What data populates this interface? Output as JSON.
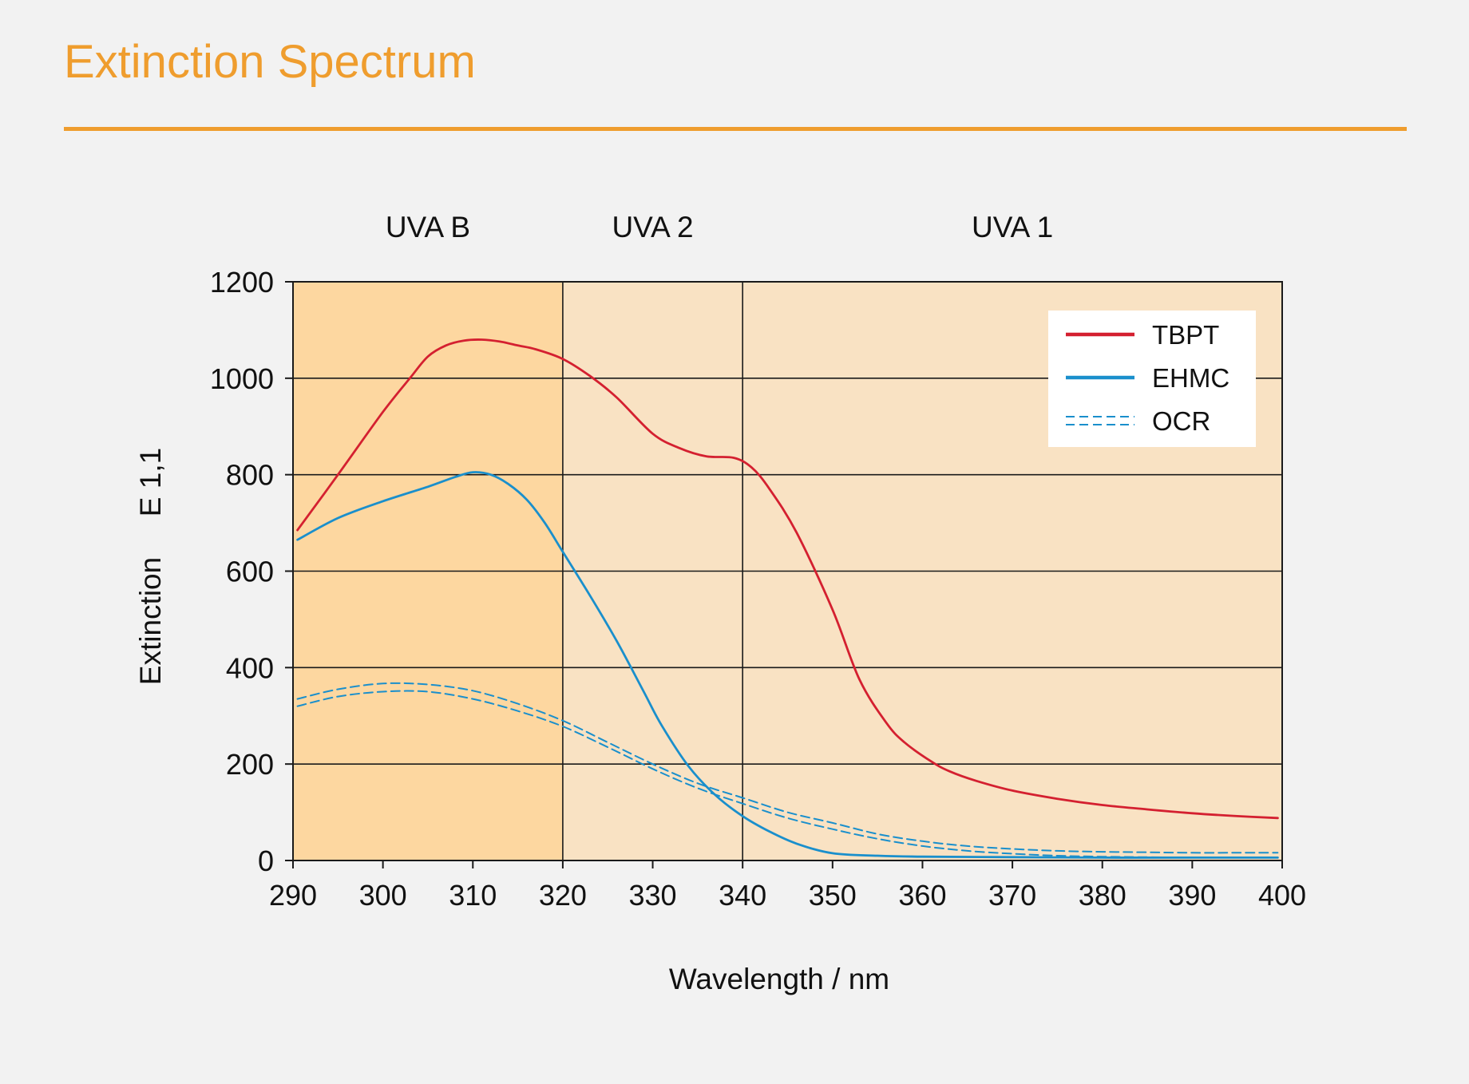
{
  "title": "Extinction Spectrum",
  "colors": {
    "title": "#ef9d2e",
    "background": "#f2f2f2",
    "uvb_region": "#fdd7a0",
    "uva_region": "#f9e2c3",
    "tbpt": "#d42030",
    "ehmc": "#1a8fcc",
    "ocr": "#1a8fcc"
  },
  "chart_data": {
    "type": "line",
    "xlabel": "Wavelength / nm",
    "ylabel_left": "Extinction",
    "ylabel_right": "E 1,1",
    "xlim": [
      290,
      400
    ],
    "ylim": [
      0,
      1200
    ],
    "xticks": [
      290,
      300,
      310,
      320,
      330,
      340,
      350,
      360,
      370,
      380,
      390,
      400
    ],
    "yticks": [
      0,
      200,
      400,
      600,
      800,
      1000,
      1200
    ],
    "grid": "horizontal",
    "legend_position": "top-right",
    "regions": [
      {
        "label": "UVA B",
        "from": 290,
        "to": 320
      },
      {
        "label": "UVA 2",
        "from": 320,
        "to": 340
      },
      {
        "label": "UVA 1",
        "from": 340,
        "to": 400
      }
    ],
    "series": [
      {
        "name": "TBPT",
        "style": "solid",
        "x": [
          290.5,
          295,
          300,
          303,
          305,
          307,
          309,
          311,
          313,
          315,
          317,
          320,
          323,
          326,
          330,
          333,
          336,
          339,
          341,
          343,
          346,
          350,
          353,
          356,
          358,
          361,
          363,
          366,
          370,
          375,
          380,
          385,
          390,
          395,
          399.5
        ],
        "y": [
          685,
          800,
          930,
          1000,
          1045,
          1068,
          1078,
          1080,
          1076,
          1068,
          1060,
          1040,
          1005,
          960,
          885,
          855,
          838,
          835,
          815,
          770,
          680,
          520,
          375,
          285,
          245,
          205,
          185,
          165,
          145,
          128,
          115,
          106,
          98,
          92,
          88
        ]
      },
      {
        "name": "EHMC",
        "style": "solid",
        "x": [
          290.5,
          295,
          300,
          305,
          308,
          310,
          312,
          314,
          316,
          318,
          320,
          323,
          326,
          329,
          331,
          334,
          337,
          340,
          343,
          346,
          350,
          355,
          360,
          370,
          380,
          390,
          399.5
        ],
        "y": [
          665,
          710,
          745,
          775,
          795,
          805,
          800,
          780,
          748,
          700,
          640,
          550,
          455,
          350,
          280,
          195,
          135,
          92,
          60,
          35,
          15,
          10,
          8,
          7,
          6,
          6,
          6
        ]
      },
      {
        "name": "OCR",
        "style": "dashed",
        "x": [
          290.5,
          295,
          300,
          305,
          310,
          315,
          320,
          325,
          330,
          335,
          340,
          345,
          350,
          355,
          360,
          365,
          370,
          375,
          380,
          385,
          390,
          395,
          399.5
        ],
        "y": [
          335,
          355,
          367,
          365,
          352,
          325,
          290,
          245,
          200,
          160,
          130,
          100,
          78,
          55,
          40,
          30,
          24,
          20,
          18,
          17,
          16,
          16,
          16
        ]
      },
      {
        "name": "OCR (lower)",
        "style": "dashed",
        "x": [
          290.5,
          295,
          300,
          305,
          310,
          315,
          320,
          325,
          330,
          335,
          340,
          345,
          350,
          355,
          360,
          365,
          370,
          375,
          380,
          385,
          390,
          395,
          399.5
        ],
        "y": [
          320,
          340,
          350,
          350,
          335,
          310,
          278,
          235,
          190,
          150,
          118,
          88,
          65,
          45,
          30,
          20,
          14,
          10,
          8,
          7,
          6,
          6,
          6
        ]
      }
    ],
    "legend": [
      "TBPT",
      "EHMC",
      "OCR"
    ]
  }
}
